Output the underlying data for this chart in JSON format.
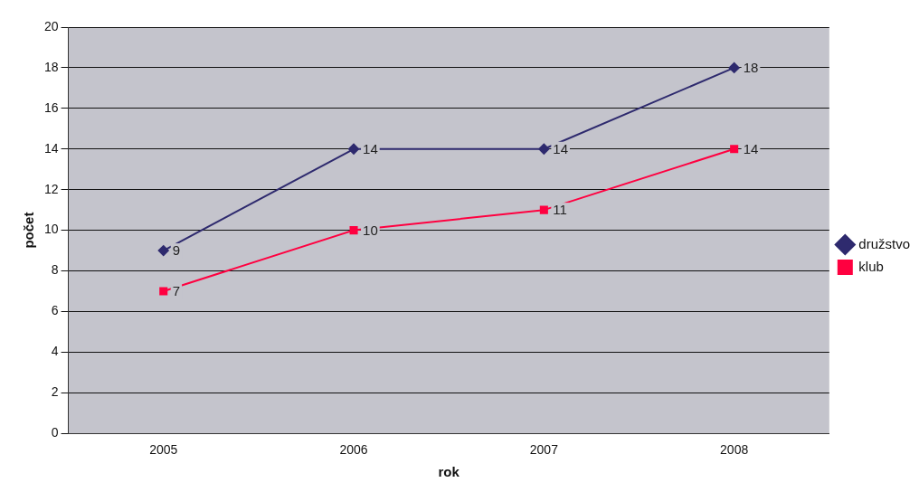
{
  "chart_data": {
    "type": "line",
    "xlabel": "rok",
    "ylabel": "počet",
    "categories": [
      "2005",
      "2006",
      "2007",
      "2008"
    ],
    "series": [
      {
        "name": "družstvo",
        "color": "#2e2a6e",
        "values": [
          9,
          14,
          14,
          18
        ],
        "marker": "diamond"
      },
      {
        "name": "klub",
        "color": "#ff0040",
        "values": [
          7,
          10,
          11,
          14
        ],
        "marker": "square"
      }
    ],
    "ylim": [
      0,
      20
    ],
    "yticks": [
      0,
      2,
      4,
      6,
      8,
      10,
      12,
      14,
      16,
      18,
      20
    ],
    "grid": "y",
    "legend": "right",
    "data_labels": true,
    "line_style": "solid"
  }
}
